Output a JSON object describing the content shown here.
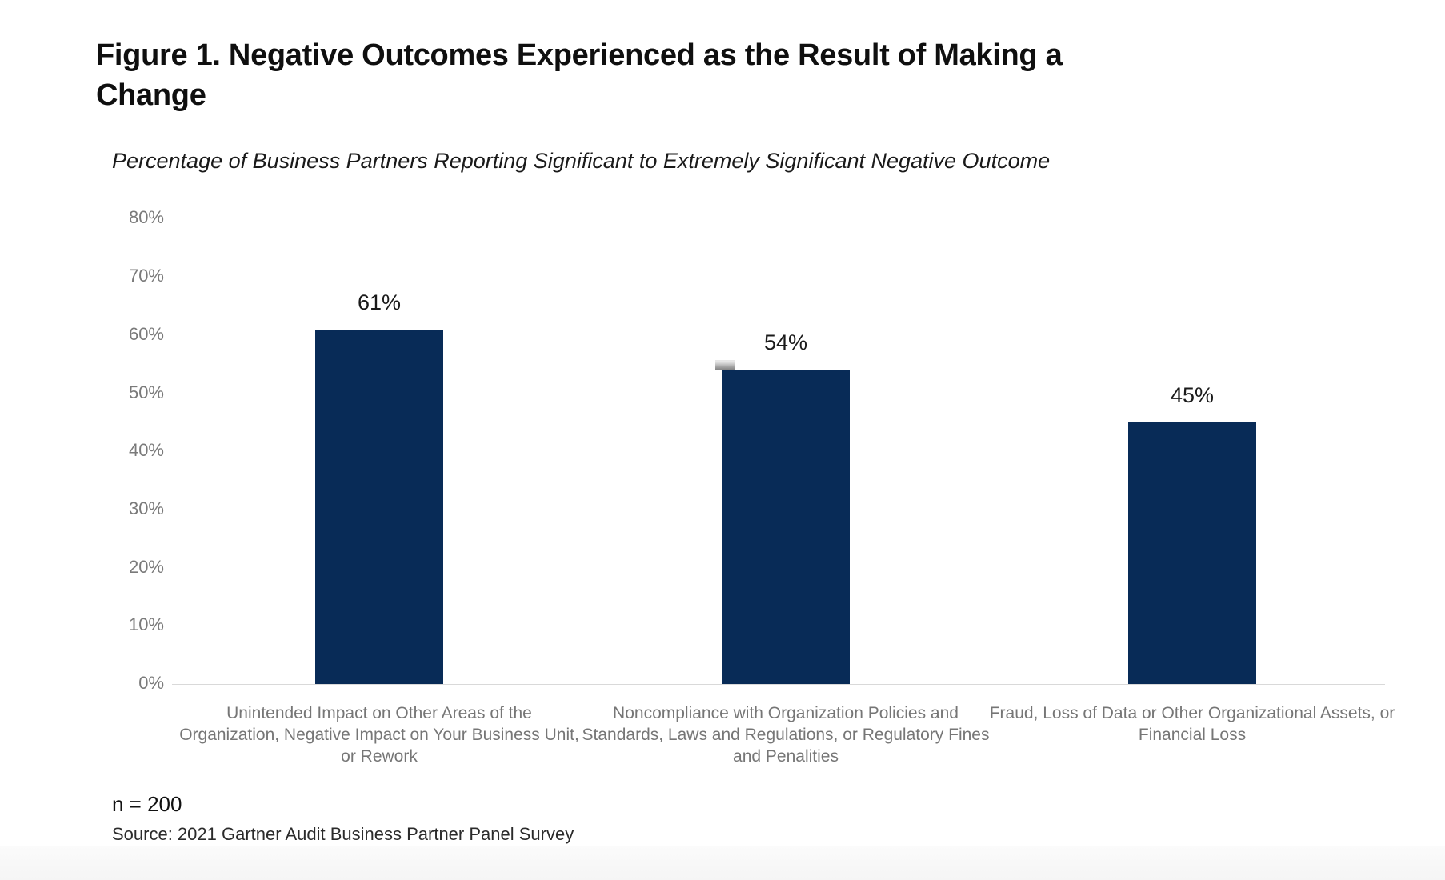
{
  "figure": {
    "title_line1": "Figure 1. Negative Outcomes Experienced as the Result of Making a",
    "title_line2": "Change",
    "n_label": "n = 200",
    "source": "Source: 2021 Gartner Audit Business Partner Panel Survey"
  },
  "chart_data": {
    "type": "bar",
    "title": "Figure 1. Negative Outcomes Experienced as the Result of Making a Change",
    "subtitle": "Percentage of Business Partners Reporting Significant to Extremely Significant Negative Outcome",
    "categories": [
      "Unintended Impact on Other Areas of the Organization, Negative Impact on Your Business Unit, or Rework",
      "Noncompliance with Organization Policies and Standards, Laws and Regulations, or Regulatory Fines and Penalities",
      "Fraud, Loss of Data or Other Organizational Assets, or Financial Loss"
    ],
    "values": [
      61,
      54,
      45
    ],
    "value_labels": [
      "61%",
      "54%",
      "45%"
    ],
    "ytick_labels": [
      "0%",
      "10%",
      "20%",
      "30%",
      "40%",
      "50%",
      "60%",
      "70%",
      "80%"
    ],
    "ytick_values": [
      0,
      10,
      20,
      30,
      40,
      50,
      60,
      70,
      80
    ],
    "ylim": [
      0,
      80
    ],
    "xlabel": "",
    "ylabel": "",
    "grid": false,
    "legend_position": "none"
  },
  "colors": {
    "bar": "#082b57",
    "title_text": "#0f0f0f",
    "subtitle_text": "#1a1a1a",
    "ytick_text": "#7a7a7a",
    "category_text": "#767676",
    "value_text": "#1a1a1a",
    "axis_line": "#d9d9d9",
    "footer_band": "#f6f6f6"
  }
}
